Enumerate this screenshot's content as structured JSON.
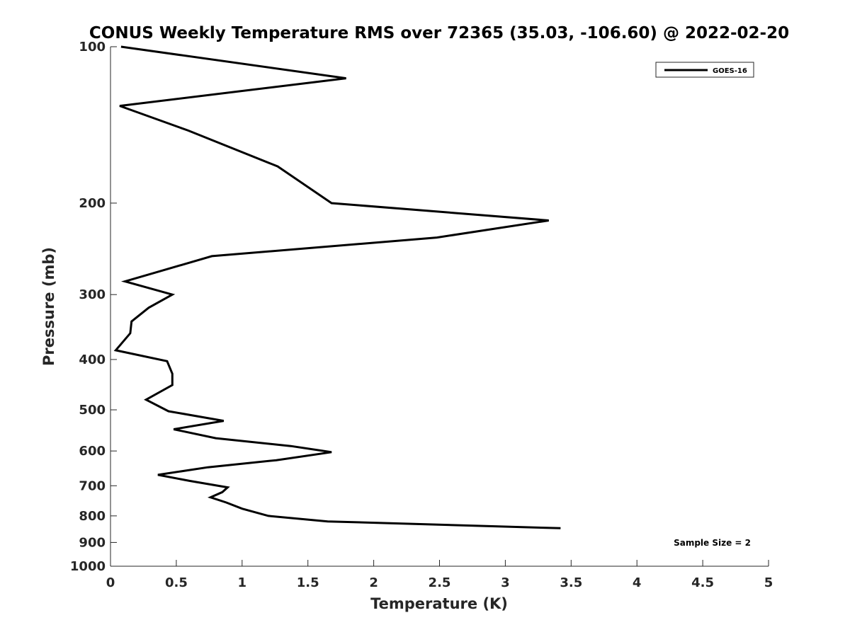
{
  "chart_data": {
    "type": "line",
    "title": "CONUS Weekly Temperature RMS over 72365 (35.03, -106.60) @ 2022-02-20",
    "xlabel": "Temperature (K)",
    "ylabel": "Pressure (mb)",
    "xlim": [
      0,
      5
    ],
    "ylim": [
      100,
      1000
    ],
    "y_scale": "log",
    "y_reversed": true,
    "grid": false,
    "legend_position": "top-right",
    "x_ticks": [
      0,
      0.5,
      1,
      1.5,
      2,
      2.5,
      3,
      3.5,
      4,
      4.5,
      5
    ],
    "x_tick_labels": [
      "0",
      "0.5",
      "1",
      "1.5",
      "2",
      "2.5",
      "3",
      "3.5",
      "4",
      "4.5",
      "5"
    ],
    "y_ticks": [
      100,
      200,
      300,
      400,
      500,
      600,
      700,
      800,
      900,
      1000
    ],
    "y_tick_labels": [
      "100",
      "200",
      "300",
      "400",
      "500",
      "600",
      "700",
      "800",
      "900",
      "1000"
    ],
    "series": [
      {
        "name": "GOES-16",
        "color": "#000000",
        "points": [
          {
            "x": 0.08,
            "y": 100
          },
          {
            "x": 1.79,
            "y": 115
          },
          {
            "x": 0.07,
            "y": 130
          },
          {
            "x": 0.59,
            "y": 145
          },
          {
            "x": 1.27,
            "y": 170
          },
          {
            "x": 1.68,
            "y": 200
          },
          {
            "x": 3.33,
            "y": 216
          },
          {
            "x": 2.48,
            "y": 233
          },
          {
            "x": 0.77,
            "y": 253
          },
          {
            "x": 0.11,
            "y": 283
          },
          {
            "x": 0.47,
            "y": 300
          },
          {
            "x": 0.29,
            "y": 318
          },
          {
            "x": 0.16,
            "y": 338
          },
          {
            "x": 0.15,
            "y": 356
          },
          {
            "x": 0.04,
            "y": 384
          },
          {
            "x": 0.43,
            "y": 403
          },
          {
            "x": 0.47,
            "y": 426
          },
          {
            "x": 0.47,
            "y": 448
          },
          {
            "x": 0.27,
            "y": 478
          },
          {
            "x": 0.44,
            "y": 503
          },
          {
            "x": 0.86,
            "y": 525
          },
          {
            "x": 0.48,
            "y": 545
          },
          {
            "x": 0.8,
            "y": 567
          },
          {
            "x": 1.37,
            "y": 587
          },
          {
            "x": 1.68,
            "y": 603
          },
          {
            "x": 1.26,
            "y": 625
          },
          {
            "x": 0.74,
            "y": 645
          },
          {
            "x": 0.36,
            "y": 667
          },
          {
            "x": 0.6,
            "y": 685
          },
          {
            "x": 0.89,
            "y": 705
          },
          {
            "x": 0.85,
            "y": 720
          },
          {
            "x": 0.76,
            "y": 737
          },
          {
            "x": 0.88,
            "y": 754
          },
          {
            "x": 1.0,
            "y": 775
          },
          {
            "x": 1.2,
            "y": 800
          },
          {
            "x": 1.65,
            "y": 820
          },
          {
            "x": 3.42,
            "y": 845
          }
        ]
      }
    ],
    "annotations": [
      {
        "text": "Sample Size = 2",
        "position": "bottom-right"
      }
    ]
  }
}
